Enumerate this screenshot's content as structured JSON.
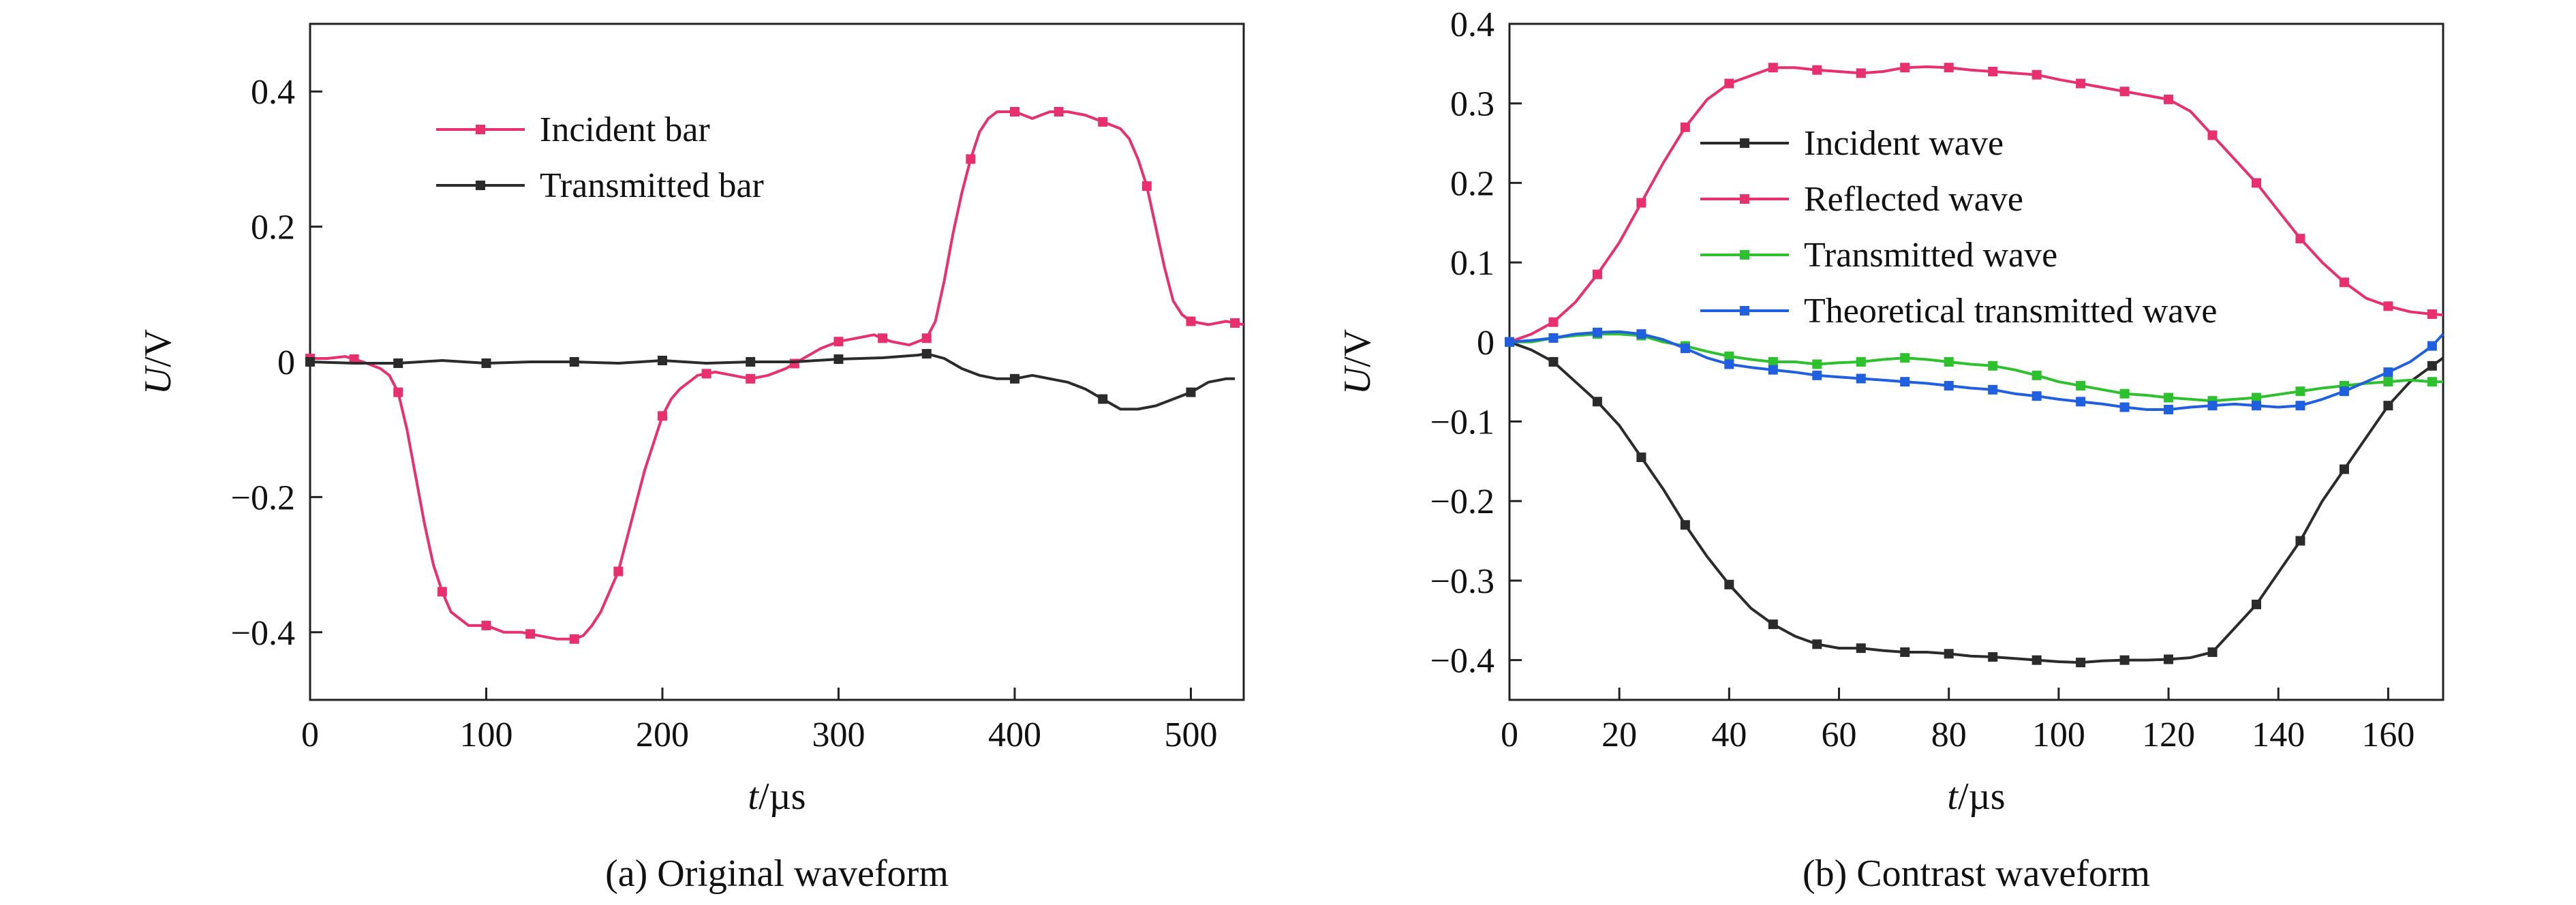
{
  "chart_data": [
    {
      "id": "a",
      "type": "line",
      "caption": "(a) Original waveform",
      "xlabel": {
        "var": "t",
        "unit": "/µs"
      },
      "ylabel": {
        "var": "U",
        "unit": "/V"
      },
      "xlim": [
        0,
        530
      ],
      "ylim": [
        -0.5,
        0.5
      ],
      "xticks": [
        0,
        100,
        200,
        300,
        400,
        500
      ],
      "xtick_labels": [
        "0",
        "100",
        "200",
        "300",
        "400",
        "500"
      ],
      "yticks": [
        -0.4,
        -0.2,
        0,
        0.2,
        0.4
      ],
      "ytick_labels": [
        "−0.4",
        "−0.2",
        "0",
        "0.2",
        "0.4"
      ],
      "grid": false,
      "legend_position": "top-left",
      "series": [
        {
          "name": "Incident bar",
          "color": "#e8306e",
          "x": [
            0,
            10,
            20,
            30,
            40,
            45,
            50,
            55,
            60,
            65,
            70,
            75,
            80,
            85,
            90,
            95,
            100,
            110,
            120,
            130,
            140,
            150,
            155,
            160,
            165,
            170,
            175,
            180,
            185,
            190,
            195,
            200,
            205,
            210,
            215,
            220,
            230,
            240,
            250,
            260,
            270,
            280,
            290,
            300,
            310,
            320,
            330,
            340,
            350,
            355,
            360,
            365,
            370,
            375,
            380,
            385,
            390,
            395,
            400,
            405,
            410,
            415,
            420,
            430,
            440,
            450,
            460,
            465,
            470,
            475,
            480,
            485,
            490,
            495,
            500,
            510,
            520,
            530
          ],
          "y": [
            0.005,
            0.005,
            0.008,
            0.0,
            -0.01,
            -0.02,
            -0.045,
            -0.1,
            -0.17,
            -0.24,
            -0.3,
            -0.34,
            -0.37,
            -0.38,
            -0.39,
            -0.39,
            -0.39,
            -0.4,
            -0.4,
            -0.405,
            -0.41,
            -0.41,
            -0.405,
            -0.39,
            -0.37,
            -0.34,
            -0.31,
            -0.26,
            -0.21,
            -0.16,
            -0.12,
            -0.08,
            -0.055,
            -0.04,
            -0.03,
            -0.02,
            -0.015,
            -0.02,
            -0.025,
            -0.02,
            -0.01,
            0.005,
            0.02,
            0.03,
            0.035,
            0.04,
            0.03,
            0.025,
            0.035,
            0.06,
            0.12,
            0.19,
            0.25,
            0.3,
            0.34,
            0.36,
            0.37,
            0.37,
            0.37,
            0.365,
            0.36,
            0.365,
            0.37,
            0.37,
            0.365,
            0.355,
            0.345,
            0.33,
            0.3,
            0.26,
            0.2,
            0.14,
            0.09,
            0.07,
            0.06,
            0.055,
            0.06,
            0.055
          ],
          "markers_x": [
            0,
            25,
            50,
            75,
            100,
            125,
            150,
            175,
            200,
            225,
            250,
            275,
            300,
            325,
            350,
            375,
            400,
            425,
            450,
            475,
            500,
            525
          ]
        },
        {
          "name": "Transmitted bar",
          "color": "#2b2b2b",
          "x": [
            0,
            25,
            50,
            75,
            100,
            125,
            150,
            175,
            200,
            225,
            250,
            275,
            300,
            325,
            345,
            350,
            360,
            370,
            380,
            390,
            400,
            410,
            420,
            430,
            440,
            450,
            460,
            470,
            480,
            490,
            500,
            510,
            520,
            525
          ],
          "y": [
            0.0,
            -0.002,
            -0.002,
            0.002,
            -0.002,
            0.0,
            0.0,
            -0.002,
            0.002,
            -0.002,
            0.0,
            0.0,
            0.004,
            0.006,
            0.01,
            0.012,
            0.005,
            -0.01,
            -0.02,
            -0.025,
            -0.025,
            -0.02,
            -0.025,
            -0.03,
            -0.04,
            -0.055,
            -0.07,
            -0.07,
            -0.065,
            -0.055,
            -0.045,
            -0.03,
            -0.025,
            -0.025
          ],
          "markers_x": [
            0,
            50,
            100,
            150,
            200,
            250,
            300,
            350,
            400,
            450,
            500
          ]
        }
      ]
    },
    {
      "id": "b",
      "type": "line",
      "caption": "(b) Contrast waveform",
      "xlabel": {
        "var": "t",
        "unit": "/µs"
      },
      "ylabel": {
        "var": "U",
        "unit": "/V"
      },
      "xlim": [
        0,
        170
      ],
      "ylim": [
        -0.45,
        0.4
      ],
      "xticks": [
        0,
        20,
        40,
        60,
        80,
        100,
        120,
        140,
        160
      ],
      "xtick_labels": [
        "0",
        "20",
        "40",
        "60",
        "80",
        "100",
        "120",
        "140",
        "160"
      ],
      "yticks": [
        -0.4,
        -0.3,
        -0.2,
        -0.1,
        0,
        0.1,
        0.2,
        0.3,
        0.4
      ],
      "ytick_labels": [
        "−0.4",
        "−0.3",
        "−0.2",
        "−0.1",
        "0",
        "0.1",
        "0.2",
        "0.3",
        "0.4"
      ],
      "grid": false,
      "legend_position": "top-left",
      "series": [
        {
          "name": "Incident wave",
          "color": "#2b2b2b",
          "x": [
            0,
            4,
            8,
            12,
            16,
            20,
            24,
            28,
            32,
            36,
            40,
            44,
            48,
            52,
            56,
            60,
            64,
            68,
            72,
            76,
            80,
            84,
            88,
            92,
            96,
            100,
            104,
            108,
            112,
            116,
            120,
            124,
            128,
            132,
            136,
            140,
            144,
            148,
            152,
            156,
            160,
            164,
            168,
            170
          ],
          "y": [
            0.0,
            -0.01,
            -0.025,
            -0.05,
            -0.075,
            -0.105,
            -0.145,
            -0.185,
            -0.23,
            -0.27,
            -0.305,
            -0.335,
            -0.355,
            -0.37,
            -0.38,
            -0.385,
            -0.385,
            -0.388,
            -0.39,
            -0.39,
            -0.392,
            -0.395,
            -0.396,
            -0.398,
            -0.4,
            -0.402,
            -0.403,
            -0.401,
            -0.4,
            -0.4,
            -0.399,
            -0.397,
            -0.39,
            -0.36,
            -0.33,
            -0.29,
            -0.25,
            -0.2,
            -0.16,
            -0.12,
            -0.08,
            -0.05,
            -0.03,
            -0.02
          ],
          "markers_x": [
            0,
            8,
            16,
            24,
            32,
            40,
            48,
            56,
            64,
            72,
            80,
            88,
            96,
            104,
            112,
            120,
            128,
            136,
            144,
            152,
            160,
            168
          ]
        },
        {
          "name": "Reflected wave",
          "color": "#e8306e",
          "x": [
            0,
            4,
            8,
            12,
            16,
            20,
            24,
            28,
            32,
            36,
            40,
            44,
            48,
            52,
            56,
            60,
            64,
            68,
            72,
            76,
            80,
            84,
            88,
            92,
            96,
            100,
            104,
            108,
            112,
            116,
            120,
            124,
            128,
            132,
            136,
            140,
            144,
            148,
            152,
            156,
            160,
            164,
            168,
            170
          ],
          "y": [
            0.0,
            0.01,
            0.025,
            0.05,
            0.085,
            0.125,
            0.175,
            0.225,
            0.27,
            0.305,
            0.325,
            0.335,
            0.345,
            0.345,
            0.342,
            0.34,
            0.338,
            0.34,
            0.345,
            0.346,
            0.345,
            0.342,
            0.34,
            0.338,
            0.336,
            0.33,
            0.325,
            0.32,
            0.315,
            0.31,
            0.305,
            0.29,
            0.26,
            0.23,
            0.2,
            0.165,
            0.13,
            0.1,
            0.075,
            0.055,
            0.045,
            0.038,
            0.035,
            0.034
          ],
          "markers_x": [
            0,
            8,
            16,
            24,
            32,
            40,
            48,
            56,
            64,
            72,
            80,
            88,
            96,
            104,
            112,
            120,
            128,
            136,
            144,
            152,
            160,
            168
          ]
        },
        {
          "name": "Transmitted wave",
          "color": "#2ec12e",
          "x": [
            0,
            4,
            8,
            12,
            16,
            20,
            24,
            28,
            32,
            36,
            40,
            44,
            48,
            52,
            56,
            60,
            64,
            68,
            72,
            76,
            80,
            84,
            88,
            92,
            96,
            100,
            104,
            108,
            112,
            116,
            120,
            124,
            128,
            132,
            136,
            140,
            144,
            148,
            152,
            156,
            160,
            164,
            168,
            170
          ],
          "y": [
            0.0,
            0.0,
            0.005,
            0.008,
            0.01,
            0.01,
            0.008,
            0.0,
            -0.005,
            -0.012,
            -0.018,
            -0.022,
            -0.025,
            -0.025,
            -0.028,
            -0.026,
            -0.025,
            -0.022,
            -0.02,
            -0.022,
            -0.025,
            -0.028,
            -0.03,
            -0.035,
            -0.042,
            -0.05,
            -0.055,
            -0.06,
            -0.065,
            -0.067,
            -0.07,
            -0.072,
            -0.074,
            -0.072,
            -0.07,
            -0.066,
            -0.062,
            -0.058,
            -0.055,
            -0.052,
            -0.05,
            -0.048,
            -0.05,
            -0.05
          ],
          "markers_x": [
            0,
            8,
            16,
            24,
            32,
            40,
            48,
            56,
            64,
            72,
            80,
            88,
            96,
            104,
            112,
            120,
            128,
            136,
            144,
            152,
            160,
            168
          ]
        },
        {
          "name": "Theoretical transmitted wave",
          "color": "#1f5fe0",
          "x": [
            0,
            4,
            8,
            12,
            16,
            20,
            24,
            28,
            32,
            36,
            40,
            44,
            48,
            52,
            56,
            60,
            64,
            68,
            72,
            76,
            80,
            84,
            88,
            92,
            96,
            100,
            104,
            108,
            112,
            116,
            120,
            124,
            128,
            132,
            136,
            140,
            144,
            148,
            152,
            156,
            160,
            164,
            168,
            170
          ],
          "y": [
            0.0,
            0.002,
            0.005,
            0.01,
            0.012,
            0.013,
            0.01,
            0.003,
            -0.008,
            -0.02,
            -0.028,
            -0.032,
            -0.035,
            -0.038,
            -0.042,
            -0.044,
            -0.046,
            -0.048,
            -0.05,
            -0.052,
            -0.055,
            -0.058,
            -0.06,
            -0.065,
            -0.068,
            -0.072,
            -0.075,
            -0.078,
            -0.082,
            -0.085,
            -0.085,
            -0.082,
            -0.08,
            -0.078,
            -0.08,
            -0.082,
            -0.08,
            -0.072,
            -0.062,
            -0.05,
            -0.038,
            -0.025,
            -0.005,
            0.01
          ],
          "markers_x": [
            0,
            8,
            16,
            24,
            32,
            40,
            48,
            56,
            64,
            72,
            80,
            88,
            96,
            104,
            112,
            120,
            128,
            136,
            144,
            152,
            160,
            168
          ]
        }
      ]
    }
  ]
}
